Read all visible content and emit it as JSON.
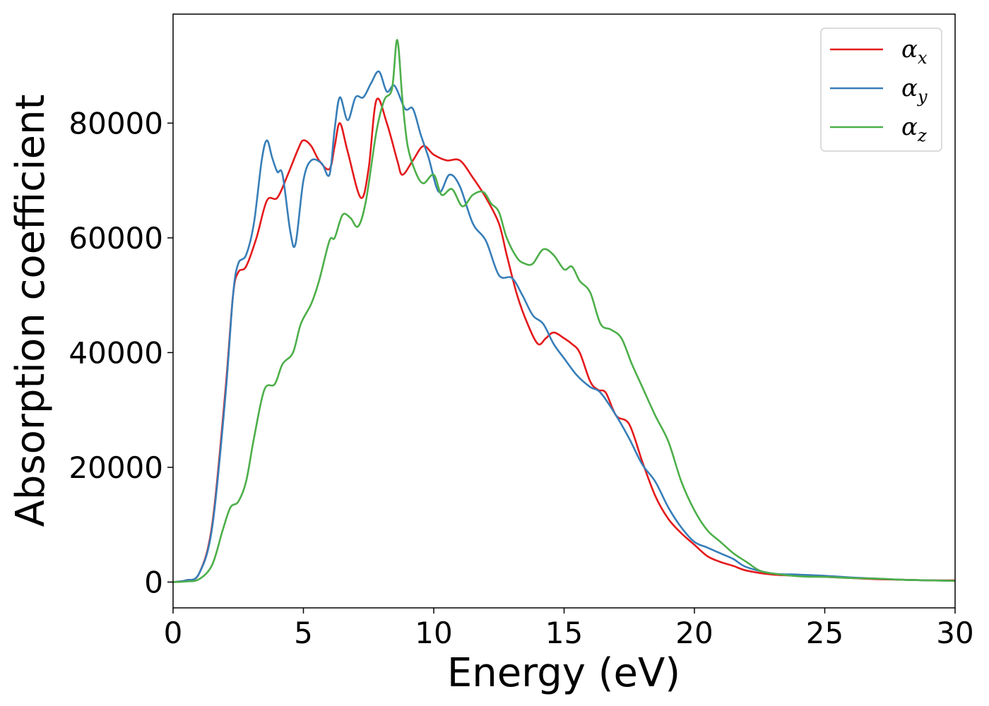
{
  "chart_data": {
    "type": "line",
    "title": "",
    "xlabel": "Energy (eV)",
    "ylabel": "Absorption coefficient",
    "xlim": [
      0,
      30
    ],
    "ylim": [
      -4500,
      99000
    ],
    "xticks": [
      0,
      5,
      10,
      15,
      20,
      25,
      30
    ],
    "xtick_labels": [
      "0",
      "5",
      "10",
      "15",
      "20",
      "25",
      "30"
    ],
    "yticks": [
      0,
      20000,
      40000,
      60000,
      80000
    ],
    "ytick_labels": [
      "0",
      "20000",
      "40000",
      "60000",
      "80000"
    ],
    "grid": false,
    "legend": {
      "placement": "top-right"
    },
    "series": [
      {
        "name": "αx",
        "label_base": "α",
        "label_sub": "x",
        "color": "#e41a1c",
        "points": [
          [
            0,
            0
          ],
          [
            0.5,
            300
          ],
          [
            1,
            1500
          ],
          [
            1.5,
            10000
          ],
          [
            2,
            33000
          ],
          [
            2.3,
            50000
          ],
          [
            2.5,
            54000
          ],
          [
            2.8,
            55000
          ],
          [
            3.2,
            60000
          ],
          [
            3.6,
            66500
          ],
          [
            4,
            67000
          ],
          [
            4.4,
            71000
          ],
          [
            4.8,
            75500
          ],
          [
            5,
            77000
          ],
          [
            5.3,
            76000
          ],
          [
            5.6,
            73500
          ],
          [
            6,
            72000
          ],
          [
            6.2,
            76000
          ],
          [
            6.4,
            80000
          ],
          [
            6.7,
            75000
          ],
          [
            7.2,
            67000
          ],
          [
            7.5,
            72000
          ],
          [
            7.8,
            84000
          ],
          [
            8.2,
            80000
          ],
          [
            8.6,
            73500
          ],
          [
            8.8,
            71000
          ],
          [
            9.2,
            73500
          ],
          [
            9.6,
            76000
          ],
          [
            10,
            74500
          ],
          [
            10.5,
            73500
          ],
          [
            11,
            73500
          ],
          [
            11.5,
            70500
          ],
          [
            12,
            67000
          ],
          [
            12.5,
            62500
          ],
          [
            12.8,
            57000
          ],
          [
            13.2,
            50000
          ],
          [
            13.6,
            45000
          ],
          [
            14,
            41500
          ],
          [
            14.3,
            42500
          ],
          [
            14.6,
            43500
          ],
          [
            15,
            42500
          ],
          [
            15.3,
            41500
          ],
          [
            15.6,
            40000
          ],
          [
            16,
            35000
          ],
          [
            16.3,
            33500
          ],
          [
            16.6,
            33000
          ],
          [
            17,
            29000
          ],
          [
            17.5,
            27500
          ],
          [
            18,
            21000
          ],
          [
            18.5,
            15000
          ],
          [
            19,
            11000
          ],
          [
            19.5,
            8500
          ],
          [
            20,
            6500
          ],
          [
            20.5,
            4500
          ],
          [
            21,
            3500
          ],
          [
            21.5,
            2800
          ],
          [
            22,
            2000
          ],
          [
            23,
            1300
          ],
          [
            24,
            1100
          ],
          [
            25,
            900
          ],
          [
            26,
            700
          ],
          [
            27,
            500
          ],
          [
            28,
            400
          ],
          [
            29,
            300
          ],
          [
            30,
            300
          ]
        ]
      },
      {
        "name": "αy",
        "label_base": "α",
        "label_sub": "y",
        "color": "#377eb8",
        "points": [
          [
            0,
            0
          ],
          [
            0.5,
            300
          ],
          [
            1,
            1500
          ],
          [
            1.5,
            9500
          ],
          [
            2,
            32000
          ],
          [
            2.3,
            50000
          ],
          [
            2.5,
            55500
          ],
          [
            2.8,
            57000
          ],
          [
            3.1,
            62500
          ],
          [
            3.4,
            73500
          ],
          [
            3.6,
            77000
          ],
          [
            3.8,
            74000
          ],
          [
            4,
            71500
          ],
          [
            4.2,
            71000
          ],
          [
            4.5,
            61000
          ],
          [
            4.7,
            59000
          ],
          [
            5,
            70000
          ],
          [
            5.3,
            73500
          ],
          [
            5.7,
            73000
          ],
          [
            6,
            71000
          ],
          [
            6.2,
            79000
          ],
          [
            6.4,
            84500
          ],
          [
            6.7,
            80500
          ],
          [
            7,
            84500
          ],
          [
            7.3,
            84500
          ],
          [
            7.6,
            87000
          ],
          [
            7.9,
            89000
          ],
          [
            8.2,
            85500
          ],
          [
            8.5,
            86500
          ],
          [
            8.9,
            82500
          ],
          [
            9.2,
            82500
          ],
          [
            9.5,
            78000
          ],
          [
            9.8,
            74000
          ],
          [
            10.2,
            68000
          ],
          [
            10.6,
            71000
          ],
          [
            11,
            69000
          ],
          [
            11.5,
            62500
          ],
          [
            12,
            59500
          ],
          [
            12.5,
            53500
          ],
          [
            13,
            53000
          ],
          [
            13.4,
            50000
          ],
          [
            13.8,
            46500
          ],
          [
            14.2,
            45000
          ],
          [
            14.6,
            41500
          ],
          [
            15,
            39000
          ],
          [
            15.5,
            36000
          ],
          [
            16,
            34000
          ],
          [
            16.4,
            33000
          ],
          [
            17,
            29000
          ],
          [
            17.5,
            25000
          ],
          [
            18,
            20500
          ],
          [
            18.5,
            17500
          ],
          [
            19,
            13000
          ],
          [
            19.5,
            9500
          ],
          [
            20,
            7000
          ],
          [
            20.5,
            6000
          ],
          [
            21,
            5000
          ],
          [
            21.5,
            4000
          ],
          [
            22,
            2600
          ],
          [
            23,
            1500
          ],
          [
            24,
            1300
          ],
          [
            25,
            1100
          ],
          [
            26,
            800
          ],
          [
            27,
            600
          ],
          [
            28,
            400
          ],
          [
            29,
            300
          ],
          [
            30,
            200
          ]
        ]
      },
      {
        "name": "αz",
        "label_base": "α",
        "label_sub": "z",
        "color": "#4daf4a",
        "points": [
          [
            0,
            0
          ],
          [
            0.5,
            100
          ],
          [
            1,
            500
          ],
          [
            1.5,
            3000
          ],
          [
            1.9,
            9000
          ],
          [
            2.2,
            13000
          ],
          [
            2.5,
            14000
          ],
          [
            2.8,
            17500
          ],
          [
            3.1,
            25000
          ],
          [
            3.5,
            33500
          ],
          [
            3.9,
            34500
          ],
          [
            4.2,
            38000
          ],
          [
            4.6,
            40000
          ],
          [
            4.9,
            45000
          ],
          [
            5.3,
            48500
          ],
          [
            5.6,
            52500
          ],
          [
            6,
            59500
          ],
          [
            6.2,
            60000
          ],
          [
            6.5,
            64000
          ],
          [
            6.8,
            63500
          ],
          [
            7.1,
            62000
          ],
          [
            7.4,
            66500
          ],
          [
            7.8,
            78500
          ],
          [
            8.1,
            84000
          ],
          [
            8.4,
            86000
          ],
          [
            8.6,
            94500
          ],
          [
            8.8,
            84000
          ],
          [
            9,
            76000
          ],
          [
            9.3,
            71500
          ],
          [
            9.6,
            69500
          ],
          [
            10,
            71000
          ],
          [
            10.3,
            67500
          ],
          [
            10.7,
            68500
          ],
          [
            11.1,
            65500
          ],
          [
            11.5,
            67500
          ],
          [
            11.9,
            68000
          ],
          [
            12.2,
            66000
          ],
          [
            12.5,
            64500
          ],
          [
            12.8,
            60000
          ],
          [
            13.2,
            56500
          ],
          [
            13.5,
            55500
          ],
          [
            13.8,
            55500
          ],
          [
            14.2,
            58000
          ],
          [
            14.6,
            57000
          ],
          [
            15,
            54500
          ],
          [
            15.3,
            55000
          ],
          [
            15.6,
            52500
          ],
          [
            16,
            50500
          ],
          [
            16.4,
            45000
          ],
          [
            16.8,
            44000
          ],
          [
            17.2,
            42500
          ],
          [
            17.6,
            38000
          ],
          [
            18,
            34000
          ],
          [
            18.5,
            29000
          ],
          [
            19,
            24500
          ],
          [
            19.5,
            17500
          ],
          [
            20,
            12500
          ],
          [
            20.5,
            9000
          ],
          [
            21,
            7000
          ],
          [
            21.5,
            5000
          ],
          [
            22,
            3500
          ],
          [
            22.5,
            2000
          ],
          [
            23,
            1500
          ],
          [
            24,
            1000
          ],
          [
            25,
            900
          ],
          [
            26,
            700
          ],
          [
            27,
            600
          ],
          [
            28,
            400
          ],
          [
            29,
            300
          ],
          [
            30,
            200
          ]
        ]
      }
    ]
  }
}
